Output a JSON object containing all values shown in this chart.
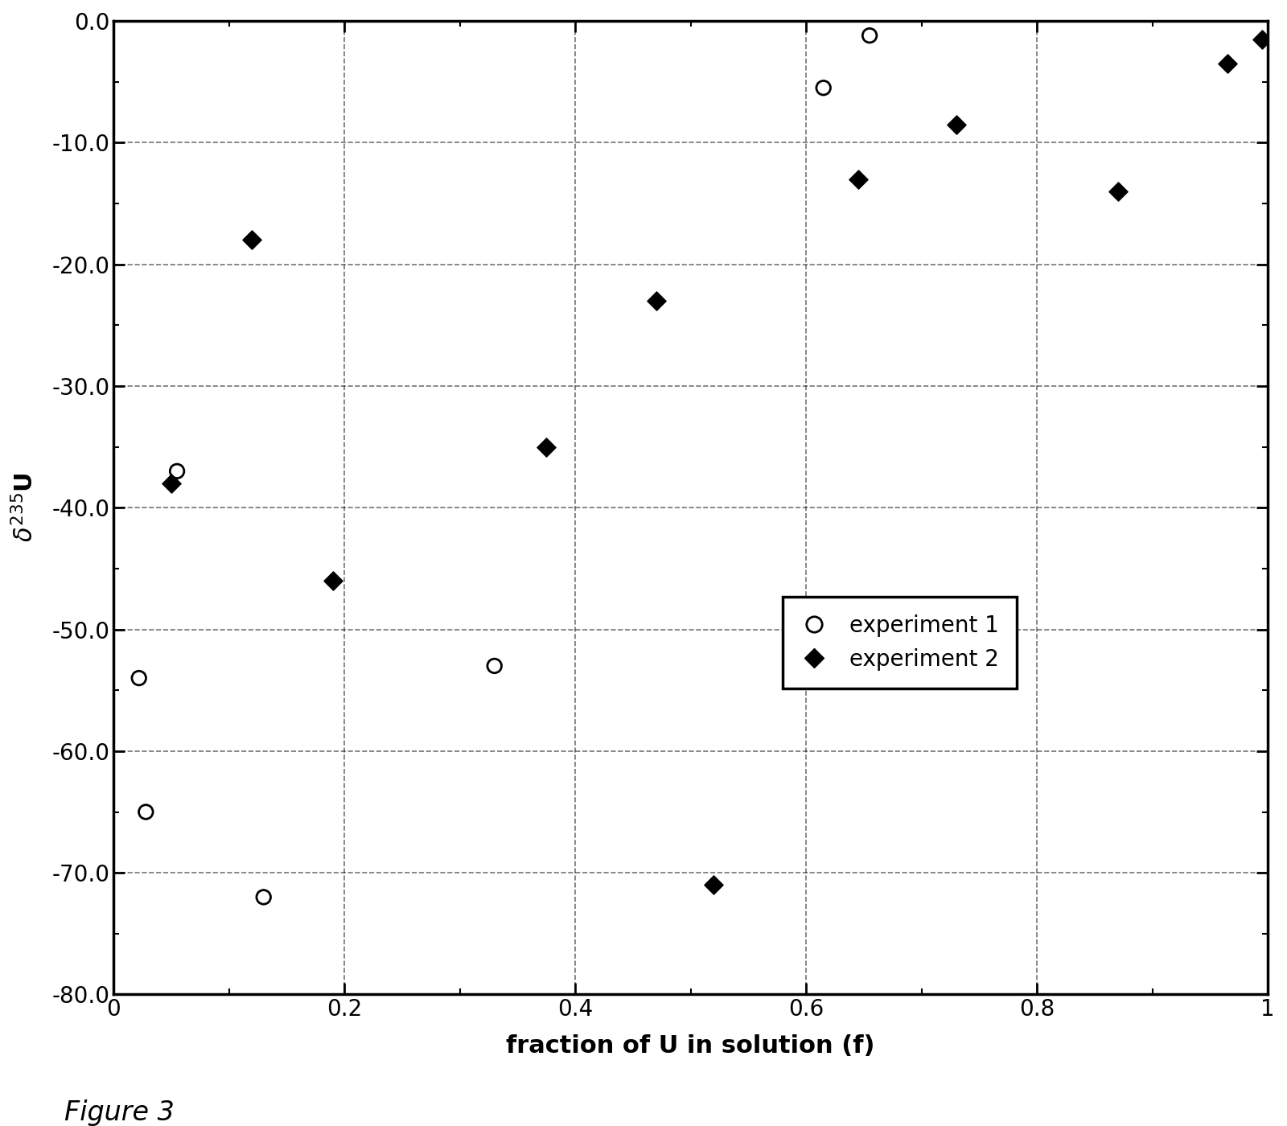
{
  "exp1_x": [
    0.022,
    0.028,
    0.055,
    0.13,
    0.33,
    0.615,
    0.655
  ],
  "exp1_y": [
    -54,
    -65,
    -37,
    -72,
    -53,
    -5.5,
    -1.2
  ],
  "exp2_x": [
    0.05,
    0.12,
    0.19,
    0.375,
    0.47,
    0.52,
    0.645,
    0.73,
    0.87,
    0.965,
    0.995
  ],
  "exp2_y": [
    -38,
    -18,
    -46,
    -35,
    -23,
    -71,
    -13,
    -8.5,
    -14,
    -3.5,
    -1.5
  ],
  "xlabel": "fraction of U in solution (f)",
  "xlim": [
    0,
    1.0
  ],
  "ylim": [
    -80,
    0
  ],
  "xticks": [
    0,
    0.2,
    0.4,
    0.6,
    0.8,
    1.0
  ],
  "yticks": [
    0.0,
    -10.0,
    -20.0,
    -30.0,
    -40.0,
    -50.0,
    -60.0,
    -70.0,
    -80.0
  ],
  "legend_labels": [
    "experiment 1",
    "experiment 2"
  ],
  "figure_caption": "Figure 3"
}
